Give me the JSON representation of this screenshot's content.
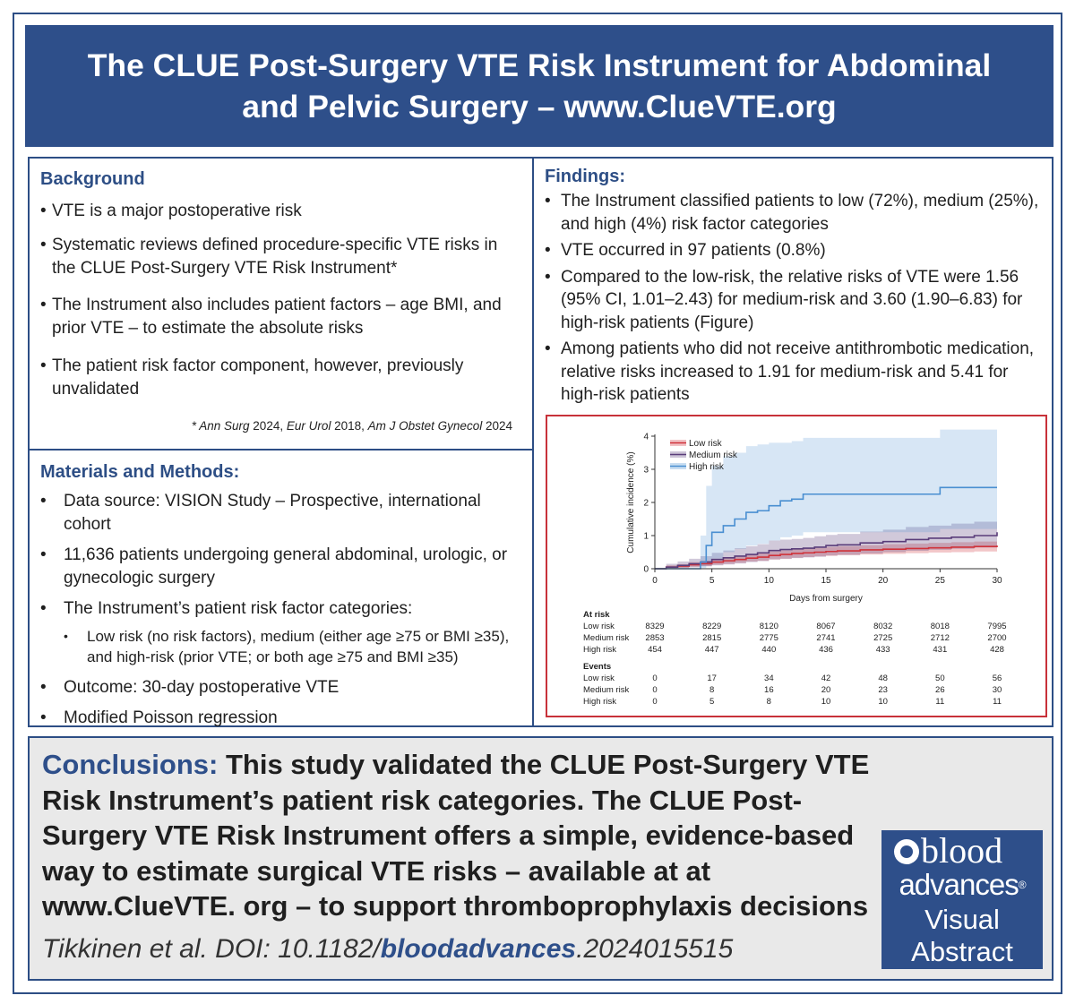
{
  "header": {
    "title_line1": "The CLUE Post-Surgery VTE Risk Instrument for Abdominal",
    "title_line2": "and Pelvic Surgery – www.ClueVTE.org"
  },
  "background": {
    "heading": "Background",
    "bullets": [
      "VTE is a major postoperative risk",
      "Systematic reviews defined procedure-specific VTE risks in the CLUE Post-Surgery VTE Risk Instrument*",
      "The Instrument also includes patient factors – age BMI, and prior VTE – to estimate the absolute risks",
      "The patient risk factor component, however, previously unvalidated"
    ],
    "refs": {
      "prefix": "* ",
      "j1": "Ann Surg",
      "y1": " 2024, ",
      "j2": "Eur Urol",
      "y2": " 2018, ",
      "j3": "Am J Obstet Gynecol",
      "y3": " 2024"
    }
  },
  "methods": {
    "heading": "Materials and Methods:",
    "bullets": [
      "Data source: VISION Study – Prospective, international cohort",
      "11,636 patients undergoing general abdominal, urologic, or gynecologic surgery",
      "The Instrument’s patient risk factor categories:"
    ],
    "sub_bullet": "Low risk (no risk factors), medium (either age ≥75 or BMI ≥35), and high-risk (prior VTE; or both age ≥75 and BMI ≥35)",
    "bullets_after": [
      "Outcome: 30-day postoperative VTE",
      "Modified Poisson regression"
    ]
  },
  "findings": {
    "heading": "Findings:",
    "bullets": [
      "The Instrument classified patients to low (72%), medium (25%), and high (4%) risk factor categories",
      "VTE occurred in 97 patients (0.8%)",
      "Compared to the low-risk, the relative risks of VTE were 1.56 (95% CI, 1.01–2.43) for medium-risk and 3.60 (1.90–6.83) for high-risk patients (Figure)",
      "Among patients who did not receive antithrombotic medication, relative risks increased to 1.91 for medium-risk and 5.41 for high-risk patients"
    ]
  },
  "chart_data": {
    "type": "line",
    "title": "",
    "xlabel": "Days from surgery",
    "ylabel": "Cumulative incidence (%)",
    "xlim": [
      0,
      30
    ],
    "ylim": [
      0,
      4
    ],
    "x_ticks": [
      0,
      5,
      10,
      15,
      20,
      25,
      30
    ],
    "y_ticks": [
      0,
      1,
      2,
      3,
      4
    ],
    "legend_position": "top-left",
    "colors": {
      "low": "#d0323a",
      "medium": "#5a3d7a",
      "high": "#4a8fd1"
    },
    "series": [
      {
        "name": "Low risk",
        "x": [
          0,
          1,
          2,
          3,
          4,
          5,
          6,
          7,
          8,
          9,
          10,
          11,
          12,
          13,
          14,
          15,
          16,
          18,
          20,
          22,
          24,
          26,
          28,
          30
        ],
        "y": [
          0,
          0.05,
          0.08,
          0.12,
          0.15,
          0.2,
          0.24,
          0.28,
          0.32,
          0.35,
          0.4,
          0.43,
          0.46,
          0.48,
          0.5,
          0.52,
          0.54,
          0.57,
          0.59,
          0.61,
          0.63,
          0.65,
          0.67,
          0.7
        ],
        "ci_low": [
          0,
          0.01,
          0.03,
          0.06,
          0.08,
          0.12,
          0.15,
          0.18,
          0.22,
          0.24,
          0.28,
          0.3,
          0.33,
          0.35,
          0.37,
          0.39,
          0.41,
          0.43,
          0.45,
          0.47,
          0.49,
          0.5,
          0.52,
          0.55
        ],
        "ci_high": [
          0,
          0.1,
          0.14,
          0.2,
          0.24,
          0.3,
          0.34,
          0.38,
          0.43,
          0.46,
          0.52,
          0.55,
          0.59,
          0.61,
          0.63,
          0.66,
          0.68,
          0.71,
          0.74,
          0.76,
          0.78,
          0.8,
          0.82,
          0.86
        ]
      },
      {
        "name": "Medium risk",
        "x": [
          0,
          1,
          2,
          3,
          4,
          5,
          6,
          7,
          8,
          9,
          10,
          11,
          12,
          13,
          14,
          15,
          16,
          18,
          20,
          22,
          24,
          26,
          28,
          30
        ],
        "y": [
          0,
          0.05,
          0.1,
          0.15,
          0.2,
          0.28,
          0.33,
          0.38,
          0.43,
          0.48,
          0.55,
          0.58,
          0.6,
          0.62,
          0.65,
          0.7,
          0.72,
          0.78,
          0.82,
          0.88,
          0.92,
          0.95,
          1.0,
          1.1
        ],
        "ci_low": [
          0,
          0.0,
          0.02,
          0.04,
          0.07,
          0.1,
          0.13,
          0.16,
          0.2,
          0.23,
          0.28,
          0.3,
          0.32,
          0.34,
          0.36,
          0.4,
          0.42,
          0.46,
          0.5,
          0.54,
          0.57,
          0.6,
          0.64,
          0.7
        ],
        "ci_high": [
          0,
          0.15,
          0.22,
          0.3,
          0.38,
          0.48,
          0.55,
          0.62,
          0.68,
          0.74,
          0.85,
          0.88,
          0.9,
          0.93,
          0.98,
          1.02,
          1.05,
          1.12,
          1.18,
          1.26,
          1.3,
          1.36,
          1.42,
          1.55
        ]
      },
      {
        "name": "High risk",
        "x": [
          0,
          3.5,
          4,
          4.5,
          5,
          6,
          7,
          8,
          9,
          10,
          11,
          12,
          13,
          15,
          20,
          24.9,
          25,
          30
        ],
        "y": [
          0,
          0,
          0.2,
          0.7,
          1.1,
          1.3,
          1.5,
          1.7,
          1.75,
          1.9,
          2.05,
          2.1,
          2.25,
          2.25,
          2.25,
          2.25,
          2.45,
          2.45
        ],
        "ci_low": [
          0,
          0,
          0.02,
          0.1,
          0.3,
          0.5,
          0.6,
          0.7,
          0.75,
          0.85,
          0.95,
          1.0,
          1.1,
          1.1,
          1.1,
          1.1,
          1.2,
          1.2
        ],
        "ci_high": [
          0,
          0,
          1.0,
          2.5,
          3.1,
          3.4,
          3.5,
          3.7,
          3.75,
          3.8,
          3.8,
          3.85,
          3.95,
          3.95,
          3.95,
          3.95,
          4.2,
          4.2
        ]
      }
    ],
    "table": {
      "at_risk_label": "At risk",
      "events_label": "Events",
      "rows_at_risk": [
        {
          "label": "Low risk",
          "values": [
            "8329",
            "8229",
            "8120",
            "8067",
            "8032",
            "8018",
            "7995"
          ]
        },
        {
          "label": "Medium risk",
          "values": [
            "2853",
            "2815",
            "2775",
            "2741",
            "2725",
            "2712",
            "2700"
          ]
        },
        {
          "label": "High risk",
          "values": [
            "454",
            "447",
            "440",
            "436",
            "433",
            "431",
            "428"
          ]
        }
      ],
      "rows_events": [
        {
          "label": "Low risk",
          "values": [
            "0",
            "17",
            "34",
            "42",
            "48",
            "50",
            "56"
          ]
        },
        {
          "label": "Medium risk",
          "values": [
            "0",
            "8",
            "16",
            "20",
            "23",
            "26",
            "30"
          ]
        },
        {
          "label": "High risk",
          "values": [
            "0",
            "5",
            "8",
            "10",
            "10",
            "11",
            "11"
          ]
        }
      ]
    }
  },
  "conclusions": {
    "label": "Conclusions:",
    "text": " This study validated the CLUE Post-Surgery VTE Risk Instrument’s patient risk categories. The CLUE Post-Surgery VTE Risk Instrument offers a simple, evidence-based way to estimate surgical VTE risks – available at at www.ClueVTE. org – to support thromboprophylaxis decisions"
  },
  "citation": {
    "prefix": "Tikkinen et al. DOI: 10.1182/",
    "bold": "bloodadvances",
    "suffix": ".2024015515"
  },
  "logo": {
    "word1": "blood",
    "word2": "advances",
    "mark": "®",
    "word3": "Visual",
    "word4": "Abstract"
  }
}
